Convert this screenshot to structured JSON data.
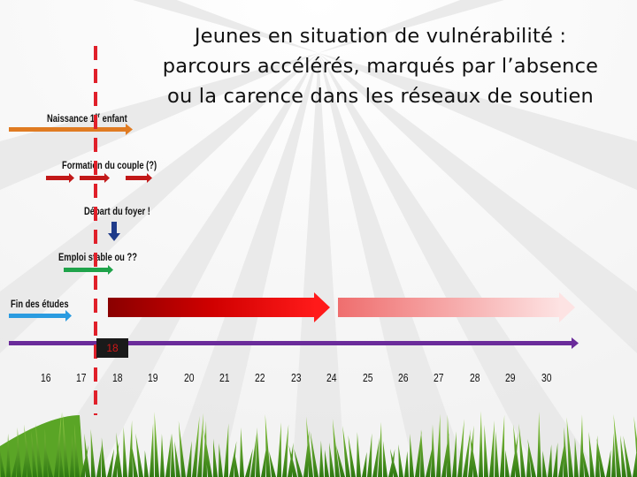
{
  "title": {
    "line1": "Jeunes en situation de vulnérabilité :",
    "line2": "parcours accélérés, marqués par l’absence",
    "line3": "ou la carence dans les réseaux de soutien"
  },
  "labels": {
    "naissance_main": "Naissance 1",
    "naissance_sup": "er",
    "naissance_rest": " enfant",
    "formation": "Formation du couple (?)",
    "depart": "Départ du foyer !",
    "emploi": "Emploi stable ou ??",
    "fin_etudes": "Fin des études"
  },
  "marker_value": "18",
  "ages": [
    "16",
    "17",
    "18",
    "19",
    "20",
    "21",
    "22",
    "23",
    "24",
    "25",
    "26",
    "27",
    "28",
    "29",
    "30"
  ],
  "colors": {
    "naissance": "#e07b22",
    "formation": "#c21818",
    "depart": "#1f3b8a",
    "emploi": "#1fa34a",
    "fin_etudes": "#2a9be0",
    "timeline": "#6a2b9a",
    "dashed_line": "#e0202a",
    "band_dark": "#c40000",
    "band_light": "#f28c8c"
  }
}
